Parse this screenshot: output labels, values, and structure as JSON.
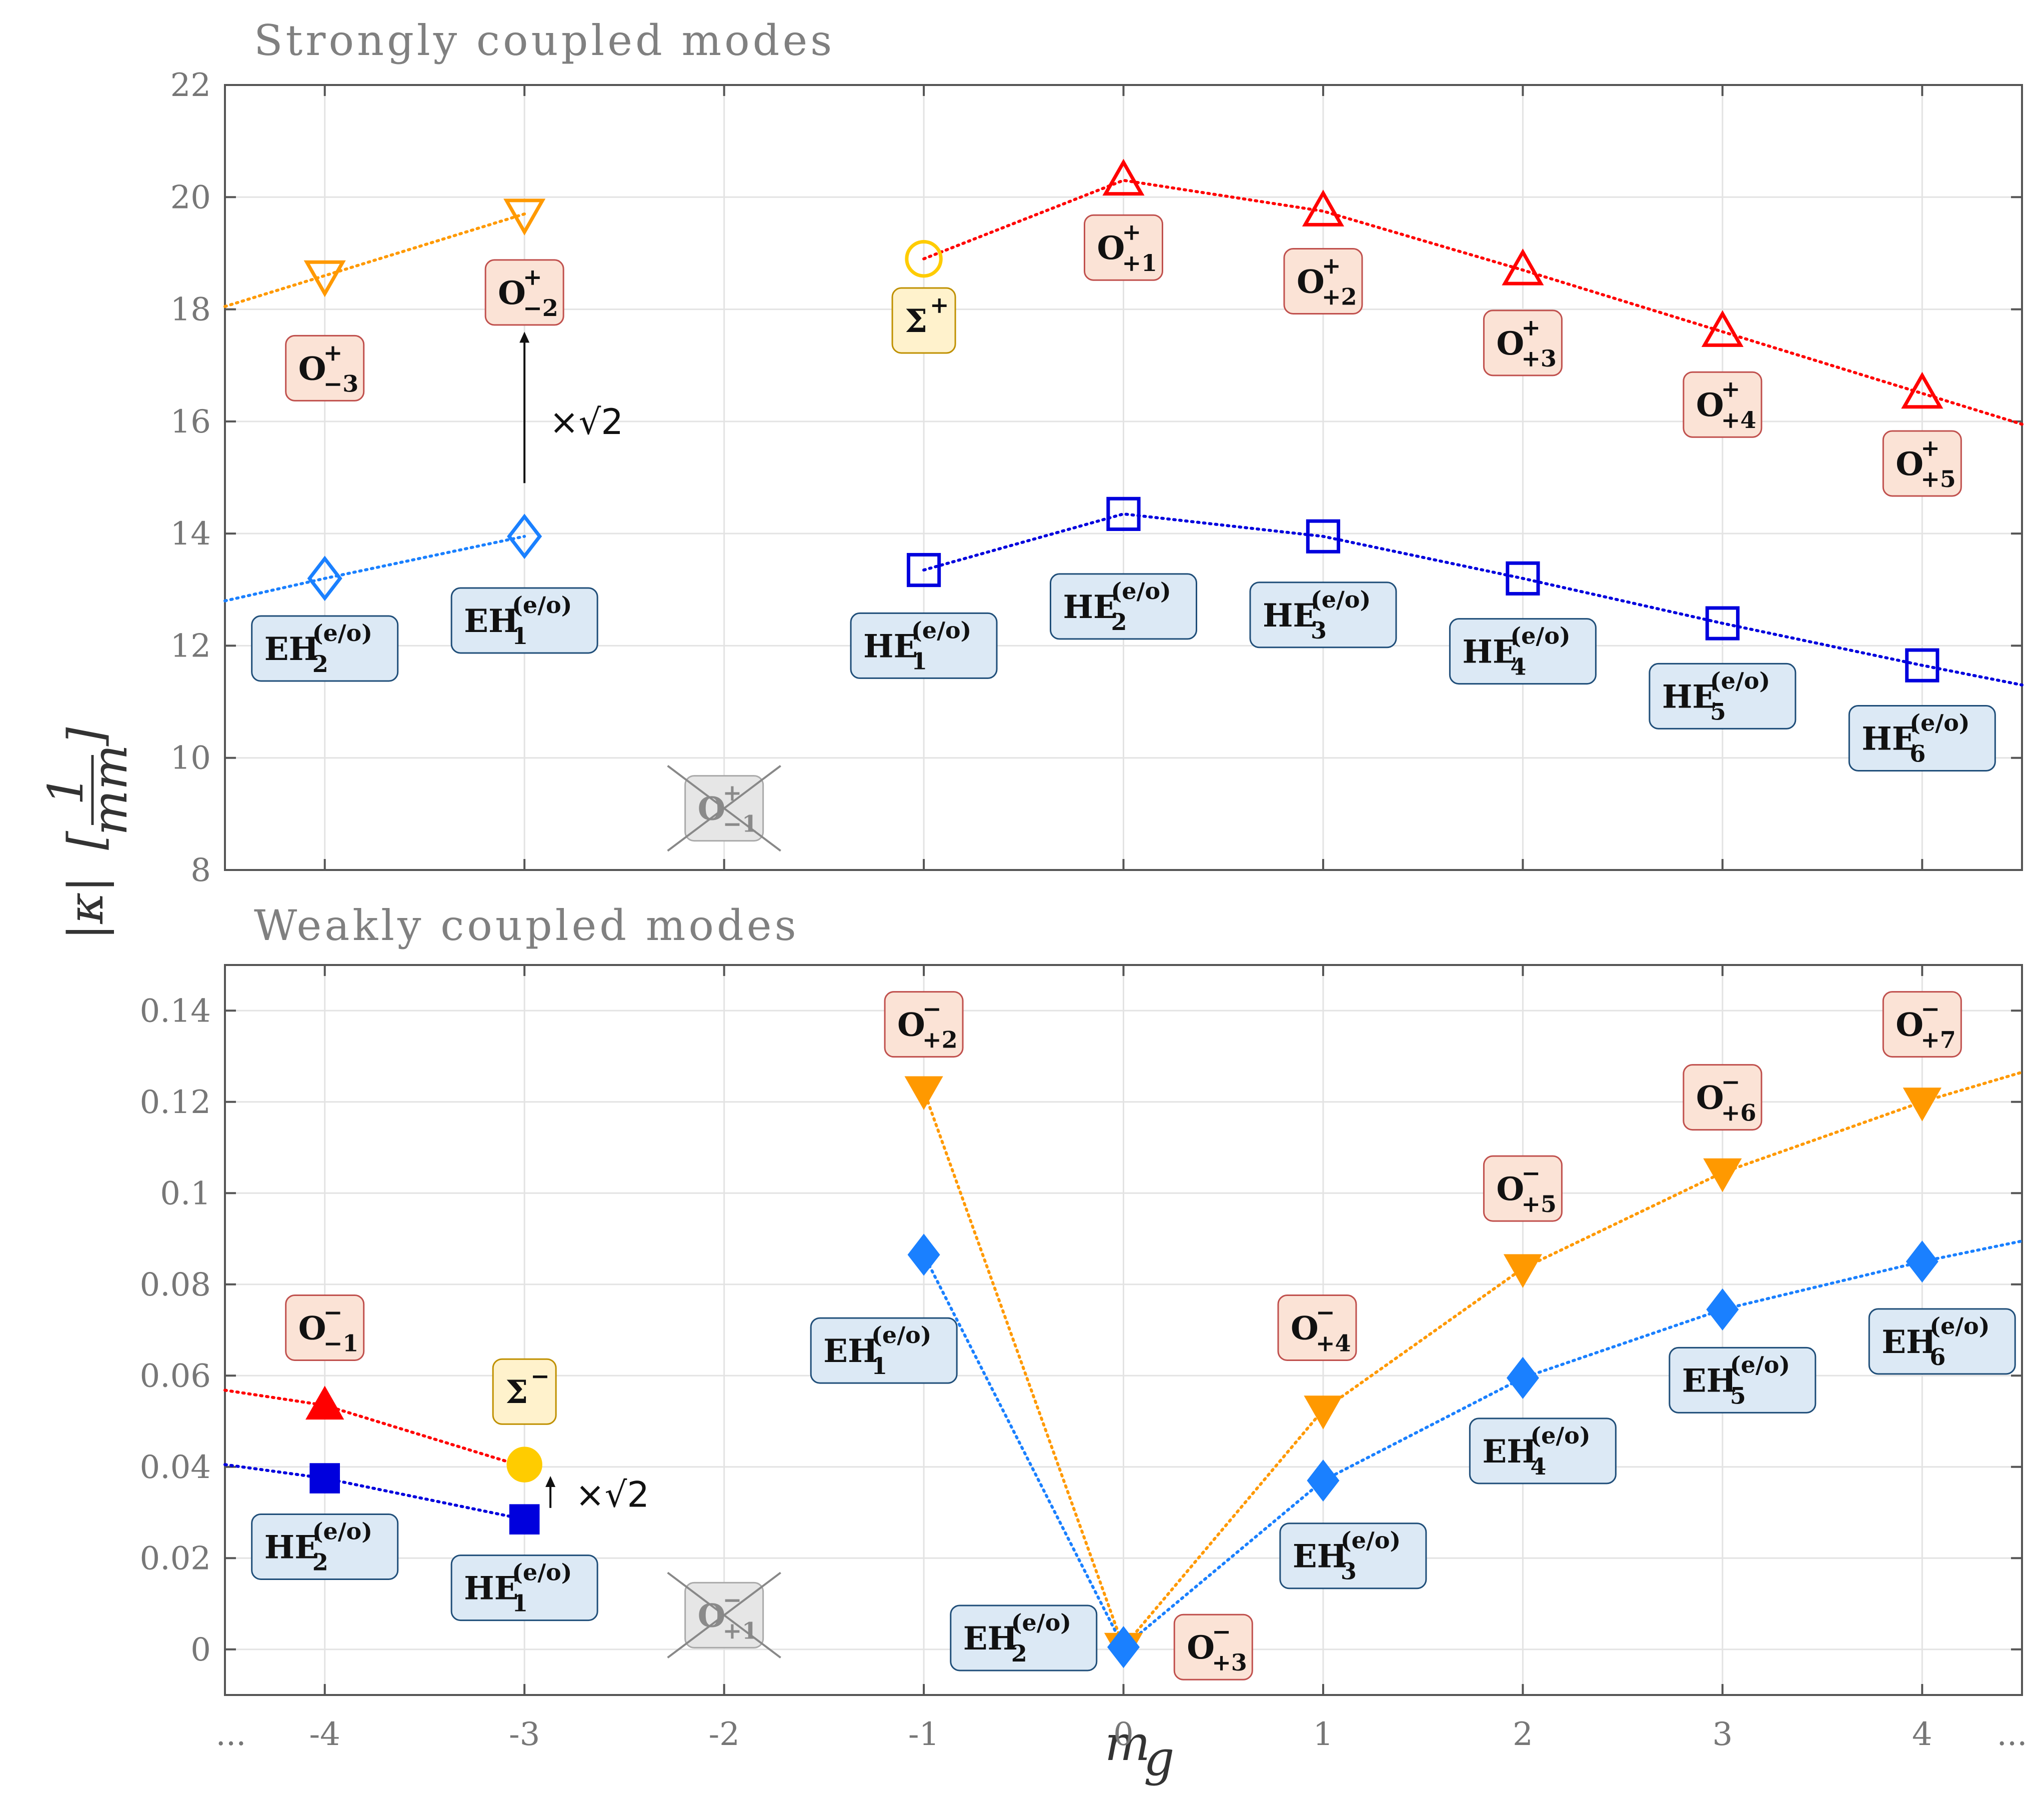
{
  "chart_data": [
    {
      "type": "line",
      "title": "Strongly coupled modes",
      "xlabel": "m_g",
      "ylabel": "|κ| [1/mm]",
      "xlim": [
        -4.5,
        4.5
      ],
      "ylim": [
        8,
        22
      ],
      "x_ticks": [
        "-4",
        "-3",
        "-2",
        "-1",
        "0",
        "1",
        "2",
        "3",
        "4"
      ],
      "y_ticks": [
        "8",
        "10",
        "12",
        "14",
        "16",
        "18",
        "20",
        "22"
      ],
      "x_extra_ticks": [
        "...",
        "..."
      ],
      "grid": true,
      "series": [
        {
          "name": "O+ (m_g ≤ -3)",
          "color": "#ff9900",
          "marker": "triangle-down-open",
          "x": [
            -4,
            -3
          ],
          "y": [
            18.6,
            19.7
          ],
          "lead_in": [
            -4.5,
            18.05
          ]
        },
        {
          "name": "Σ+",
          "color": "#ffcc00",
          "marker": "circle-open",
          "x": [
            -1
          ],
          "y": [
            18.9
          ]
        },
        {
          "name": "O+ (m_g ≥ 0)",
          "color": "#ff0000",
          "marker": "triangle-up-open",
          "x": [
            -1,
            0,
            1,
            2,
            3,
            4
          ],
          "y": [
            18.9,
            20.3,
            19.75,
            18.7,
            17.6,
            16.5
          ],
          "lead_out": [
            4.5,
            15.95
          ],
          "first_point_marker": false
        },
        {
          "name": "EH (m_g ≤ -3)",
          "color": "#1a80ff",
          "marker": "diamond-open",
          "x": [
            -4,
            -3
          ],
          "y": [
            13.2,
            13.95
          ],
          "lead_in": [
            -4.5,
            12.8
          ]
        },
        {
          "name": "HE",
          "color": "#0000dd",
          "marker": "square-open",
          "x": [
            -1,
            0,
            1,
            2,
            3,
            4
          ],
          "y": [
            13.35,
            14.35,
            13.95,
            13.2,
            12.4,
            11.65
          ],
          "lead_out": [
            4.5,
            11.3
          ]
        }
      ],
      "labels": [
        {
          "main": "O",
          "sup": "+",
          "sub": "−3",
          "style": "orange",
          "x": -4,
          "y": 16.95
        },
        {
          "main": "O",
          "sup": "+",
          "sub": "−2",
          "style": "orange",
          "x": -3,
          "y": 18.3
        },
        {
          "main": "Σ",
          "sup": "+",
          "sub": "",
          "style": "yellow",
          "x": -1,
          "y": 17.8
        },
        {
          "main": "O",
          "sup": "+",
          "sub": "+1",
          "style": "orange",
          "x": 0,
          "y": 19.1
        },
        {
          "main": "O",
          "sup": "+",
          "sub": "+2",
          "style": "orange",
          "x": 1,
          "y": 18.5
        },
        {
          "main": "O",
          "sup": "+",
          "sub": "+3",
          "style": "orange",
          "x": 2,
          "y": 17.4
        },
        {
          "main": "O",
          "sup": "+",
          "sub": "+4",
          "style": "orange",
          "x": 3,
          "y": 16.3
        },
        {
          "main": "O",
          "sup": "+",
          "sub": "+5",
          "style": "orange",
          "x": 4,
          "y": 15.25
        },
        {
          "main": "EH",
          "sup": "(e/o)",
          "sub": "2",
          "style": "blue",
          "x": -4,
          "y": 11.95
        },
        {
          "main": "EH",
          "sup": "(e/o)",
          "sub": "1",
          "style": "blue",
          "x": -3,
          "y": 12.45
        },
        {
          "main": "HE",
          "sup": "(e/o)",
          "sub": "1",
          "style": "blue",
          "x": -1,
          "y": 12.0
        },
        {
          "main": "HE",
          "sup": "(e/o)",
          "sub": "2",
          "style": "blue",
          "x": 0,
          "y": 12.7
        },
        {
          "main": "HE",
          "sup": "(e/o)",
          "sub": "3",
          "style": "blue",
          "x": 1,
          "y": 12.55
        },
        {
          "main": "HE",
          "sup": "(e/o)",
          "sub": "4",
          "style": "blue",
          "x": 2,
          "y": 11.9
        },
        {
          "main": "HE",
          "sup": "(e/o)",
          "sub": "5",
          "style": "blue",
          "x": 3,
          "y": 11.1
        },
        {
          "main": "HE",
          "sup": "(e/o)",
          "sub": "6",
          "style": "blue",
          "x": 4,
          "y": 10.35
        },
        {
          "main": "O",
          "sup": "+",
          "sub": "−1",
          "style": "grey",
          "x": -2,
          "y": 9.1,
          "crossed": true
        }
      ],
      "annotation": {
        "text": "×√2",
        "arrow_x": -3,
        "arrow_from": 14.9,
        "arrow_to": 17.6,
        "text_y": 16.0
      }
    },
    {
      "type": "line",
      "title": "Weakly coupled modes",
      "xlabel": "m_g",
      "ylabel": "|κ| [1/mm]",
      "xlim": [
        -4.5,
        4.5
      ],
      "ylim": [
        -0.01,
        0.15
      ],
      "x_ticks": [
        "-4",
        "-3",
        "-2",
        "-1",
        "0",
        "1",
        "2",
        "3",
        "4"
      ],
      "y_ticks": [
        "0",
        "0.02",
        "0.04",
        "0.06",
        "0.08",
        "0.1",
        "0.12",
        "0.14"
      ],
      "x_extra_ticks": [
        "...",
        "..."
      ],
      "grid": true,
      "series": [
        {
          "name": "O− (m_g ≤ -3)",
          "color": "#ff0000",
          "marker": "triangle-up-filled",
          "x": [
            -4,
            -3
          ],
          "y": [
            0.0535,
            0.04
          ],
          "lead_in": [
            -4.5,
            0.0568
          ],
          "last_point_marker": false
        },
        {
          "name": "Σ−",
          "color": "#ffcc00",
          "marker": "circle-filled",
          "x": [
            -3
          ],
          "y": [
            0.0405
          ]
        },
        {
          "name": "HE (m_g ≤ -3)",
          "color": "#0000dd",
          "marker": "square-filled",
          "x": [
            -4,
            -3
          ],
          "y": [
            0.0375,
            0.0285
          ],
          "lead_in": [
            -4.5,
            0.0405
          ]
        },
        {
          "name": "O− (m_g ≥ -1)",
          "color": "#ff9900",
          "marker": "triangle-down-filled",
          "x": [
            -1,
            0,
            1,
            2,
            3,
            4
          ],
          "y": [
            0.1225,
            0.0005,
            0.0525,
            0.0835,
            0.1045,
            0.12
          ],
          "lead_out": [
            4.5,
            0.1265
          ]
        },
        {
          "name": "EH (m_g ≥ -1)",
          "color": "#1a80ff",
          "marker": "diamond-filled",
          "x": [
            -1,
            0,
            1,
            2,
            3,
            4
          ],
          "y": [
            0.0865,
            0.0005,
            0.037,
            0.0595,
            0.0745,
            0.085
          ],
          "lead_out": [
            4.5,
            0.0895
          ]
        }
      ],
      "labels": [
        {
          "main": "O",
          "sup": "−",
          "sub": "−1",
          "style": "orange",
          "x": -4,
          "y": 0.0705
        },
        {
          "main": "Σ",
          "sup": "−",
          "sub": "",
          "style": "yellow",
          "x": -3,
          "y": 0.0565
        },
        {
          "main": "HE",
          "sup": "(e/o)",
          "sub": "2",
          "style": "blue",
          "x": -4,
          "y": 0.0225
        },
        {
          "main": "HE",
          "sup": "(e/o)",
          "sub": "1",
          "style": "blue",
          "x": -3,
          "y": 0.0135
        },
        {
          "main": "O",
          "sup": "−",
          "sub": "+2",
          "style": "orange",
          "x": -1,
          "y": 0.137
        },
        {
          "main": "EH",
          "sup": "(e/o)",
          "sub": "1",
          "style": "blue",
          "x": -1.2,
          "y": 0.0655
        },
        {
          "main": "EH",
          "sup": "(e/o)",
          "sub": "2",
          "style": "blue",
          "x": -0.5,
          "y": 0.0025
        },
        {
          "main": "O",
          "sup": "−",
          "sub": "+3",
          "style": "orange",
          "x": 0.45,
          "y": 0.0005
        },
        {
          "main": "O",
          "sup": "−",
          "sub": "+4",
          "style": "orange",
          "x": 0.97,
          "y": 0.0705
        },
        {
          "main": "EH",
          "sup": "(e/o)",
          "sub": "3",
          "style": "blue",
          "x": 1.15,
          "y": 0.0205
        },
        {
          "main": "O",
          "sup": "−",
          "sub": "+5",
          "style": "orange",
          "x": 2,
          "y": 0.101
        },
        {
          "main": "EH",
          "sup": "(e/o)",
          "sub": "4",
          "style": "blue",
          "x": 2.1,
          "y": 0.0435
        },
        {
          "main": "O",
          "sup": "−",
          "sub": "+6",
          "style": "orange",
          "x": 3,
          "y": 0.121
        },
        {
          "main": "EH",
          "sup": "(e/o)",
          "sub": "5",
          "style": "blue",
          "x": 3.1,
          "y": 0.059
        },
        {
          "main": "O",
          "sup": "−",
          "sub": "+7",
          "style": "orange",
          "x": 4,
          "y": 0.137
        },
        {
          "main": "EH",
          "sup": "(e/o)",
          "sub": "6",
          "style": "blue",
          "x": 4.1,
          "y": 0.0675
        },
        {
          "main": "O",
          "sup": "−",
          "sub": "+1",
          "style": "grey",
          "x": -2,
          "y": 0.0075,
          "crossed": true
        }
      ],
      "annotation": {
        "text": "×√2",
        "arrow_x": -2.87,
        "arrow_from": 0.031,
        "arrow_to": 0.038,
        "text_y": 0.034
      }
    }
  ],
  "axis_label": {
    "y_main": "|κ|",
    "y_unit_num": "1",
    "y_unit_den": "mm",
    "x_main": "m",
    "x_sub": "g"
  }
}
